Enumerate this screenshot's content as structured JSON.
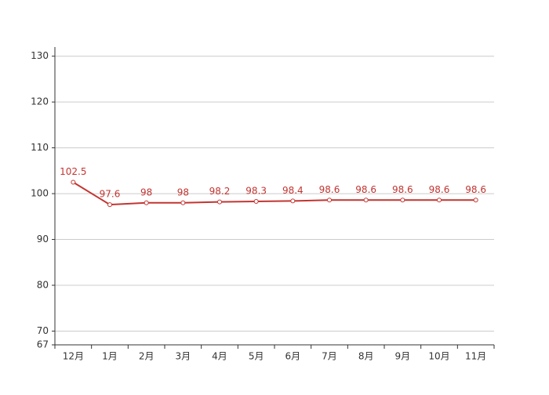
{
  "chart_data": {
    "type": "line",
    "categories": [
      "12月",
      "1月",
      "2月",
      "3月",
      "4月",
      "5月",
      "6月",
      "7月",
      "8月",
      "9月",
      "10月",
      "11月"
    ],
    "values": [
      102.5,
      97.6,
      98,
      98,
      98.2,
      98.3,
      98.4,
      98.6,
      98.6,
      98.6,
      98.6,
      98.6
    ],
    "color": "#c23531",
    "ylim": [
      67,
      132
    ],
    "yticks": [
      67,
      70,
      80,
      90,
      100,
      110,
      120,
      130
    ],
    "grid": true
  }
}
